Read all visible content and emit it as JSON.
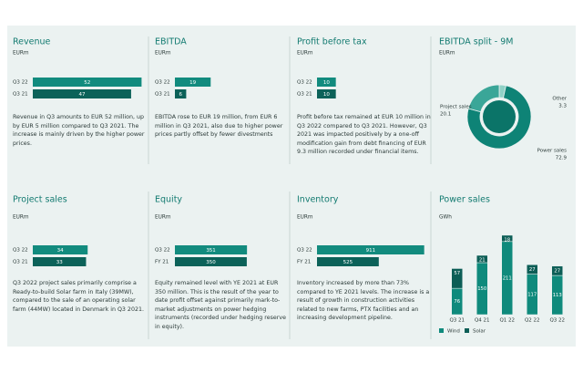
{
  "chart_data": [
    {
      "type": "hbar",
      "title": "Revenue",
      "subtitle": "EURm",
      "categories": [
        "Q3 22",
        "Q3 21"
      ],
      "values": [
        52,
        47
      ],
      "colors": [
        "#128b7e",
        "#0c6259"
      ],
      "xlim": [
        0,
        54
      ],
      "text": "Revenue in Q3 amounts to EUR 52 million, up by EUR 5 million compared to Q3 2021. The increase is mainly driven by the higher power prices."
    },
    {
      "type": "hbar",
      "title": "EBITDA",
      "subtitle": "EURm",
      "categories": [
        "Q3 22",
        "Q3 21"
      ],
      "values": [
        19,
        6
      ],
      "colors": [
        "#128b7e",
        "#0c6259"
      ],
      "xlim": [
        0,
        60
      ],
      "text": "EBITDA rose to EUR 19 million, from EUR 6 million in Q3 2021, also due to higher power prices partly offset by fewer divestments"
    },
    {
      "type": "hbar",
      "title": "Profit before tax",
      "subtitle": "EURm",
      "categories": [
        "Q3 22",
        "Q3 21"
      ],
      "values": [
        10,
        10
      ],
      "colors": [
        "#128b7e",
        "#0c6259"
      ],
      "xlim": [
        0,
        60
      ],
      "text": "Profit before tax remained at EUR 10 million in Q3 2022 compared to Q3 2021. However, Q3 2021 was impacted positively by a one-off modification gain from debt financing of EUR 9.3 million recorded under financial items."
    },
    {
      "type": "pie",
      "title": "EBITDA split - 9M",
      "subtitle": "EURm",
      "categories": [
        "Other",
        "Power sales",
        "Project sales"
      ],
      "values": [
        3.3,
        72.9,
        20.1
      ],
      "colors": [
        "#8fd1c6",
        "#0e8376",
        "#3aa698"
      ]
    },
    {
      "type": "hbar",
      "title": "Project sales",
      "subtitle": "EURm",
      "categories": [
        "Q3 22",
        "Q3 21"
      ],
      "values": [
        34,
        33
      ],
      "colors": [
        "#128b7e",
        "#0c6259"
      ],
      "xlim": [
        0,
        70
      ],
      "text": "Q3 2022 project sales primarily comprise a Ready-to-build Solar farm in Italy (39MW), compared to the sale of an operating solar farm (44MW) located in Denmark in Q3 2021."
    },
    {
      "type": "hbar",
      "title": "Equity",
      "subtitle": "EURm",
      "categories": [
        "Q3 22",
        "FY 21"
      ],
      "values": [
        351,
        350
      ],
      "colors": [
        "#128b7e",
        "#0c6259"
      ],
      "xlim": [
        0,
        550
      ],
      "text": "Equity remained level with YE 2021 at EUR 350 million. This is the result of the year to date profit offset against primarily mark-to-market adjustments on power hedging instruments (recorded under hedging reserve in equity)."
    },
    {
      "type": "hbar",
      "title": "Inventory",
      "subtitle": "EURm",
      "categories": [
        "Q3 22",
        "FY 21"
      ],
      "values": [
        911,
        525
      ],
      "colors": [
        "#128b7e",
        "#0c6259"
      ],
      "xlim": [
        0,
        960
      ],
      "text": "Inventory increased by more than 73% compared to YE 2021 levels. The increase is a result of growth in construction activities related to new farms, PTX facilities and an increasing development pipeline."
    },
    {
      "type": "stacked-bar",
      "title": "Power sales",
      "subtitle": "GWh",
      "categories": [
        "Q3 21",
        "Q4 21",
        "Q1 22",
        "Q2 22",
        "Q3 22"
      ],
      "ylim": [
        0,
        250
      ],
      "series": [
        {
          "name": "Wind",
          "color": "#0f8a7c",
          "values": [
            76,
            150,
            211,
            117,
            113
          ]
        },
        {
          "name": "Solar",
          "color": "#0c5e56",
          "values": [
            57,
            21,
            18,
            27,
            27
          ]
        }
      ]
    }
  ]
}
